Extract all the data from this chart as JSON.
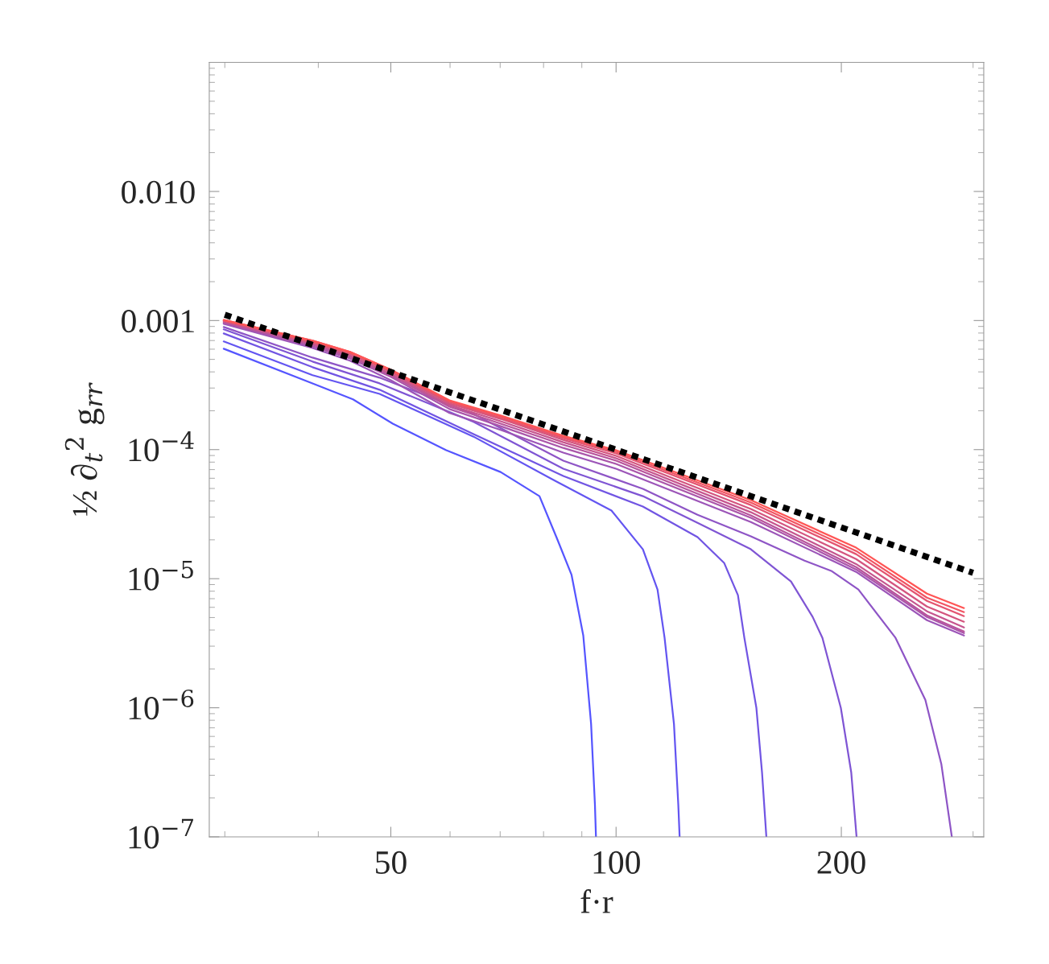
{
  "chart_data": {
    "type": "line",
    "xlabel": "f·r",
    "ylabel": "½ ∂$_{t}$$^{2}$ g$_{rr}$",
    "log": "xy",
    "grid": false,
    "legend": false,
    "xlim": [
      28.6,
      310
    ],
    "ylim": [
      1e-07,
      0.1
    ],
    "xticks": [
      50,
      100,
      200
    ],
    "yticks": [
      {
        "value": 0.01,
        "label": "0.010"
      },
      {
        "value": 0.001,
        "label": "0.001"
      },
      {
        "value": 0.0001,
        "label": "10$^{−4}$"
      },
      {
        "value": 1e-05,
        "label": "10$^{−5}$"
      },
      {
        "value": 1e-06,
        "label": "10$^{−6}$"
      },
      {
        "value": 1e-07,
        "label": "10$^{−7}$"
      }
    ],
    "x": [
      29.9,
      39.3,
      44.1,
      50.0,
      59.9,
      70.1,
      85.0,
      100.0,
      151.4,
      209.3,
      260.3,
      291.7
    ],
    "series": [
      {
        "color": "#5555ff",
        "line_style": "solid",
        "x": [
          29.9,
          39.3,
          44.5,
          50.3,
          59.3,
          70.1,
          79.0,
          83.4,
          87.2,
          90.4,
          92.6,
          93.7,
          94.0
        ],
        "values": [
          0.000605,
          0.000326,
          0.000245,
          0.000159,
          9.9e-05,
          6.7e-05,
          4.36e-05,
          2.04e-05,
          1.07e-05,
          3.63e-06,
          7.5e-07,
          1.78e-07,
          1e-07
        ]
      },
      {
        "color": "#6355f1",
        "line_style": "solid",
        "x": [
          29.9,
          39.3,
          48.3,
          64.5,
          82.5,
          98.6,
          108.6,
          113.6,
          116.1,
          119.5,
          121.1,
          121.6
        ],
        "values": [
          0.000689,
          0.000377,
          0.00027,
          0.000126,
          5.81e-05,
          3.37e-05,
          1.69e-05,
          8.24e-06,
          3.48e-06,
          7.5e-07,
          1.78e-07,
          1e-07
        ]
      },
      {
        "color": "#7155e3",
        "line_style": "solid",
        "x": [
          29.9,
          39.3,
          48.3,
          64.5,
          85.0,
          108.6,
          128.5,
          139.5,
          145.5,
          148.4,
          154.0,
          156.7,
          158.8
        ],
        "values": [
          0.000794,
          0.000435,
          0.000291,
          0.000132,
          6.25e-05,
          3.62e-05,
          2.1e-05,
          1.32e-05,
          7.45e-06,
          3.48e-06,
          9.97e-07,
          3.15e-07,
          1e-07
        ]
      },
      {
        "color": "#7f55d4",
        "line_style": "solid",
        "x": [
          29.9,
          39.3,
          48.3,
          64.5,
          85.0,
          108.6,
          128.5,
          151.4,
          171.3,
          183.1,
          188.7,
          199.7,
          206.2,
          209.6
        ],
        "values": [
          0.000854,
          0.000481,
          0.000326,
          0.000164,
          7.11e-05,
          4.36e-05,
          2.71e-05,
          1.69e-05,
          9.51e-06,
          5.06e-06,
          3.48e-06,
          9.97e-07,
          3.15e-07,
          1e-07
        ]
      },
      {
        "color": "#8e55c6",
        "line_style": "solid",
        "x": [
          29.9,
          39.3,
          48.3,
          64.5,
          85.0,
          108.6,
          128.5,
          151.4,
          178.6,
          193.9,
          210.8,
          236.3,
          259.0,
          272.1,
          281.0
        ],
        "values": [
          0.000891,
          0.000516,
          0.000361,
          0.000189,
          8.21e-05,
          4.97e-05,
          3.13e-05,
          2.13e-05,
          1.38e-05,
          1.15e-05,
          8.24e-06,
          3.48e-06,
          1.15e-06,
          3.65e-07,
          1e-07
        ]
      },
      {
        "color": "#9c55b8",
        "line_style": "solid",
        "values": [
          0.000944,
          0.000613,
          0.000488,
          0.000345,
          0.000192,
          0.000142,
          9.48e-05,
          7.11e-05,
          2.75e-05,
          1.13e-05,
          4.77e-06,
          3.63e-06
        ]
      },
      {
        "color": "#aa55aa",
        "line_style": "solid",
        "values": [
          0.000958,
          0.000631,
          0.000509,
          0.000366,
          0.000206,
          0.000152,
          0.000103,
          7.75e-05,
          2.96e-05,
          1.18e-05,
          5.05e-06,
          3.79e-06
        ]
      },
      {
        "color": "#b8559c",
        "line_style": "solid",
        "values": [
          0.000972,
          0.00065,
          0.000524,
          0.000376,
          0.000215,
          0.000159,
          0.000109,
          8.21e-05,
          3.09e-05,
          1.23e-05,
          5.2e-06,
          3.9e-06
        ]
      },
      {
        "color": "#c6558e",
        "line_style": "solid",
        "values": [
          0.000986,
          0.000659,
          0.000539,
          0.000387,
          0.000221,
          0.000166,
          0.000114,
          8.57e-05,
          3.27e-05,
          1.3e-05,
          5.59e-06,
          4.19e-06
        ]
      },
      {
        "color": "#d4557f",
        "line_style": "solid",
        "values": [
          0.001,
          0.000678,
          0.000555,
          0.000399,
          0.000228,
          0.000173,
          0.000119,
          8.95e-05,
          3.47e-05,
          1.42e-05,
          6.09e-06,
          4.64e-06
        ]
      },
      {
        "color": "#e35571",
        "line_style": "solid",
        "values": [
          0.001,
          0.000678,
          0.000555,
          0.000404,
          0.000234,
          0.000176,
          0.000123,
          9.34e-05,
          3.72e-05,
          1.55e-05,
          6.73e-06,
          5.13e-06
        ]
      },
      {
        "color": "#f15563",
        "line_style": "solid",
        "values": [
          0.00101,
          0.000698,
          0.000571,
          0.000416,
          0.000238,
          0.000181,
          0.000126,
          9.61e-05,
          3.89e-05,
          1.64e-05,
          7.13e-06,
          5.51e-06
        ]
      },
      {
        "color": "#ff5555",
        "line_style": "solid",
        "values": [
          0.00101,
          0.000698,
          0.000571,
          0.000416,
          0.000241,
          0.000184,
          0.000128,
          9.89e-05,
          4.06e-05,
          1.74e-05,
          7.66e-06,
          5.92e-06
        ]
      },
      {
        "color": "#000000",
        "line_style": "dashed",
        "x": [
          30,
          300
        ],
        "values": [
          0.00111,
          1.11e-05
        ]
      }
    ]
  }
}
